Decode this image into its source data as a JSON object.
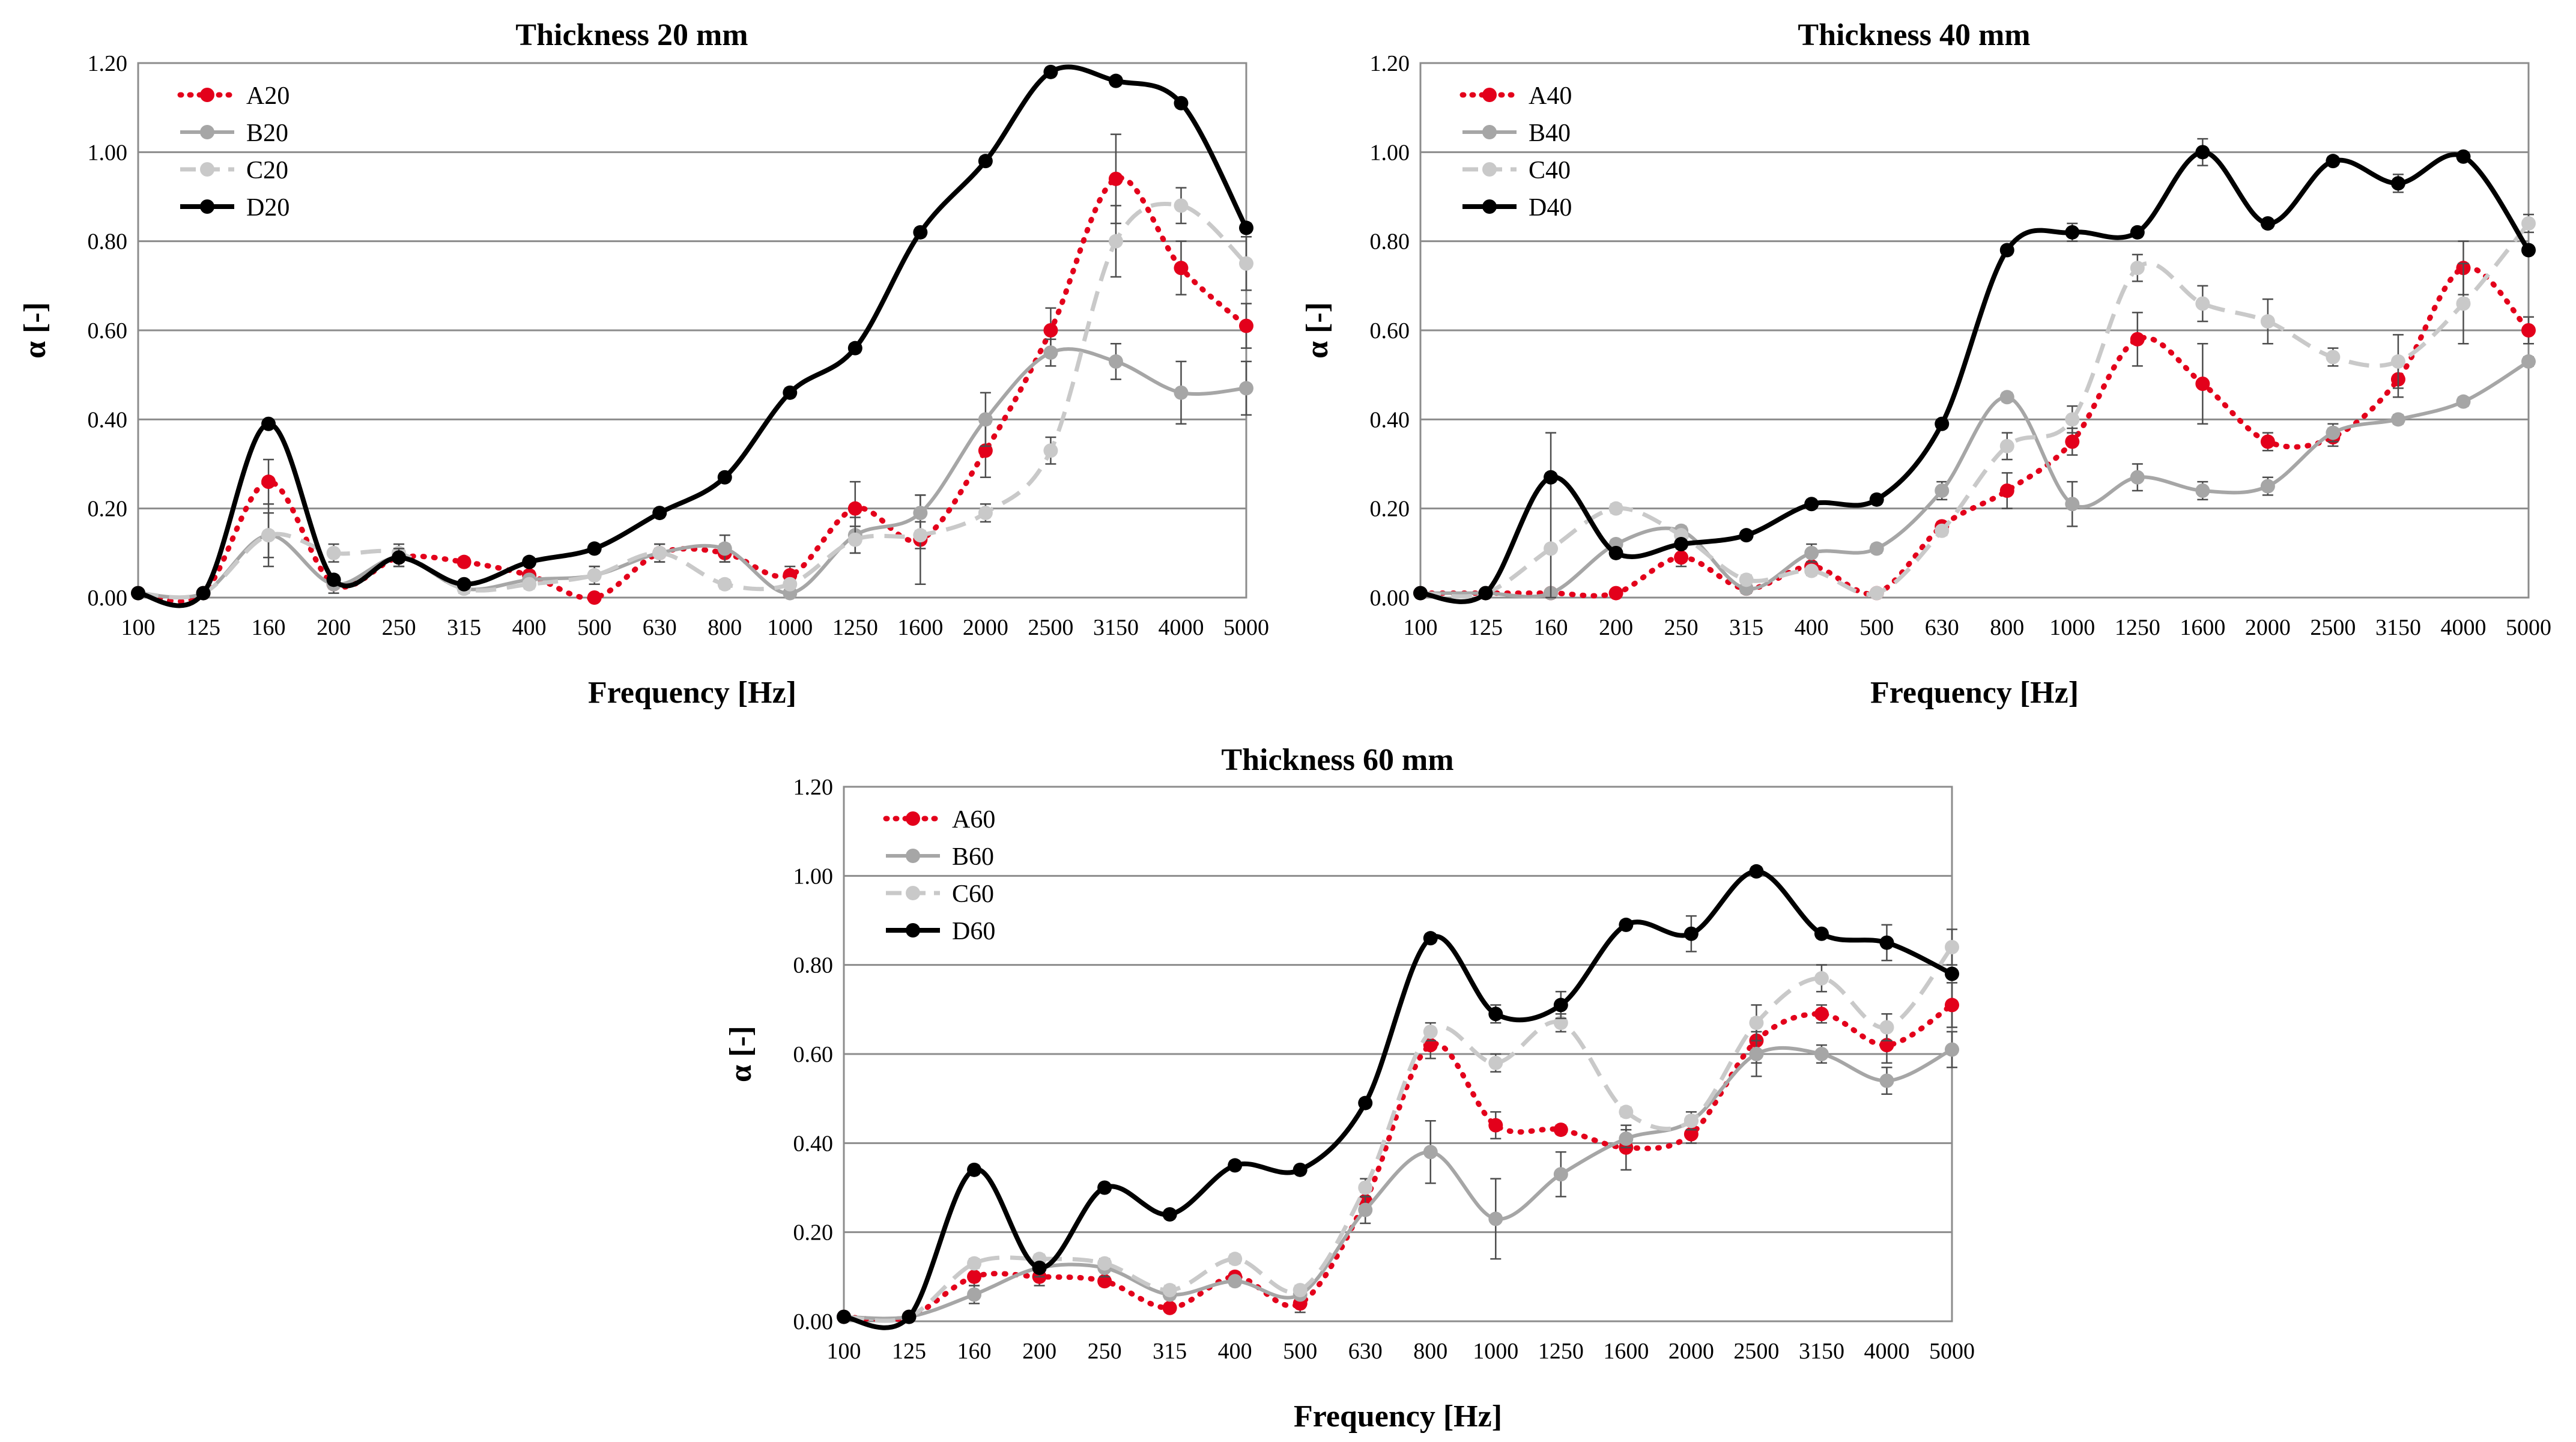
{
  "chart_data": [
    {
      "type": "line",
      "title": "Thickness 20 mm",
      "xlabel": "Frequency [Hz]",
      "ylabel": "α [-]",
      "ylim": [
        0,
        1.2
      ],
      "yticks": [
        "0.00",
        "0.20",
        "0.40",
        "0.60",
        "0.80",
        "1.00",
        "1.20"
      ],
      "grid": true,
      "legend_position": "top-left",
      "categories": [
        "100",
        "125",
        "160",
        "200",
        "250",
        "315",
        "400",
        "500",
        "630",
        "800",
        "1000",
        "1250",
        "1600",
        "2000",
        "2500",
        "3150",
        "4000",
        "5000"
      ],
      "series": [
        {
          "name": "A20",
          "style": "red-dotted",
          "values": [
            0.01,
            0.01,
            0.26,
            0.03,
            0.09,
            0.08,
            0.05,
            0.0,
            0.1,
            0.1,
            0.05,
            0.2,
            0.13,
            0.33,
            0.6,
            0.94,
            0.74,
            0.61
          ],
          "errors": [
            0,
            0,
            0.05,
            0.01,
            0.02,
            0.01,
            0.01,
            0,
            0.01,
            0.02,
            0.02,
            0.06,
            0.1,
            0.06,
            0.05,
            0.1,
            0.06,
            0.05
          ]
        },
        {
          "name": "B20",
          "style": "gray-solid",
          "values": [
            0.01,
            0.01,
            0.14,
            0.03,
            0.09,
            0.02,
            0.04,
            0.05,
            0.1,
            0.11,
            0.01,
            0.14,
            0.19,
            0.4,
            0.55,
            0.53,
            0.46,
            0.47
          ],
          "errors": [
            0,
            0,
            0.07,
            0.02,
            0.02,
            0.01,
            0.01,
            0.02,
            0.02,
            0.03,
            0.01,
            0.04,
            0.04,
            0.06,
            0.03,
            0.04,
            0.07,
            0.06
          ]
        },
        {
          "name": "C20",
          "style": "lightgray-dashed",
          "values": [
            0.01,
            0.01,
            0.14,
            0.1,
            0.1,
            0.02,
            0.03,
            0.05,
            0.1,
            0.03,
            0.03,
            0.13,
            0.14,
            0.19,
            0.33,
            0.8,
            0.88,
            0.75
          ],
          "errors": [
            0,
            0,
            0.05,
            0.02,
            0.02,
            0.01,
            0.01,
            0.02,
            0.02,
            0.01,
            0.01,
            0.03,
            0.03,
            0.02,
            0.03,
            0.08,
            0.04,
            0.06
          ]
        },
        {
          "name": "D20",
          "style": "black-solid",
          "values": [
            0.01,
            0.01,
            0.39,
            0.04,
            0.09,
            0.03,
            0.08,
            0.11,
            0.19,
            0.27,
            0.46,
            0.56,
            0.82,
            0.98,
            1.18,
            1.16,
            1.11,
            0.83
          ],
          "errors": [
            0,
            0,
            0.01,
            0.01,
            0.02,
            0.01,
            0.01,
            0.01,
            0.01,
            0.01,
            0.01,
            0.01,
            0.01,
            0.01,
            0.01,
            0.01,
            0.01,
            0.01
          ]
        }
      ]
    },
    {
      "type": "line",
      "title": "Thickness 40 mm",
      "xlabel": "Frequency [Hz]",
      "ylabel": "α [-]",
      "ylim": [
        0,
        1.2
      ],
      "yticks": [
        "0.00",
        "0.20",
        "0.40",
        "0.60",
        "0.80",
        "1.00",
        "1.20"
      ],
      "grid": true,
      "legend_position": "top-left",
      "categories": [
        "100",
        "125",
        "160",
        "200",
        "250",
        "315",
        "400",
        "500",
        "630",
        "800",
        "1000",
        "1250",
        "1600",
        "2000",
        "2500",
        "3150",
        "4000",
        "5000"
      ],
      "series": [
        {
          "name": "A40",
          "style": "red-dotted",
          "values": [
            0.01,
            0.01,
            0.01,
            0.01,
            0.09,
            0.02,
            0.07,
            0.01,
            0.16,
            0.24,
            0.35,
            0.58,
            0.48,
            0.35,
            0.36,
            0.49,
            0.74,
            0.6
          ],
          "errors": [
            0,
            0,
            0,
            0,
            0.02,
            0.01,
            0.01,
            0,
            0.01,
            0.04,
            0.03,
            0.06,
            0.09,
            0.02,
            0.02,
            0.04,
            0.06,
            0.03
          ]
        },
        {
          "name": "B40",
          "style": "gray-solid",
          "values": [
            0.01,
            0.01,
            0.01,
            0.12,
            0.15,
            0.02,
            0.1,
            0.11,
            0.24,
            0.45,
            0.21,
            0.27,
            0.24,
            0.25,
            0.37,
            0.4,
            0.44,
            0.53
          ],
          "errors": [
            0,
            0,
            0,
            0.01,
            0.01,
            0.01,
            0.02,
            0.01,
            0.02,
            0.01,
            0.05,
            0.03,
            0.02,
            0.02,
            0.02,
            0.01,
            0.01,
            0.01
          ]
        },
        {
          "name": "C40",
          "style": "lightgray-dashed",
          "values": [
            0.01,
            0.01,
            0.11,
            0.2,
            0.14,
            0.04,
            0.06,
            0.01,
            0.15,
            0.34,
            0.4,
            0.74,
            0.66,
            0.62,
            0.54,
            0.53,
            0.66,
            0.84
          ],
          "errors": [
            0,
            0,
            0.26,
            0.01,
            0.01,
            0.01,
            0.01,
            0,
            0.01,
            0.03,
            0.03,
            0.03,
            0.04,
            0.05,
            0.02,
            0.06,
            0.09,
            0.02
          ]
        },
        {
          "name": "D40",
          "style": "black-solid",
          "values": [
            0.01,
            0.01,
            0.27,
            0.1,
            0.12,
            0.14,
            0.21,
            0.22,
            0.39,
            0.78,
            0.82,
            0.82,
            1.0,
            0.84,
            0.98,
            0.93,
            0.99,
            0.78
          ],
          "errors": [
            0,
            0,
            0.01,
            0.01,
            0.01,
            0.01,
            0.01,
            0.01,
            0.01,
            0.01,
            0.02,
            0.01,
            0.03,
            0.01,
            0.01,
            0.02,
            0.01,
            0.01
          ]
        }
      ]
    },
    {
      "type": "line",
      "title": "Thickness 60 mm",
      "xlabel": "Frequency [Hz]",
      "ylabel": "α [-]",
      "ylim": [
        0,
        1.2
      ],
      "yticks": [
        "0.00",
        "0.20",
        "0.40",
        "0.60",
        "0.80",
        "1.00",
        "1.20"
      ],
      "grid": true,
      "legend_position": "top-left",
      "categories": [
        "100",
        "125",
        "160",
        "200",
        "250",
        "315",
        "400",
        "500",
        "630",
        "800",
        "1000",
        "1250",
        "1600",
        "2000",
        "2500",
        "3150",
        "4000",
        "5000"
      ],
      "series": [
        {
          "name": "A60",
          "style": "red-dotted",
          "values": [
            0.01,
            0.01,
            0.1,
            0.1,
            0.09,
            0.03,
            0.1,
            0.04,
            0.27,
            0.62,
            0.44,
            0.43,
            0.39,
            0.42,
            0.63,
            0.69,
            0.62,
            0.71
          ],
          "errors": [
            0,
            0,
            0.02,
            0.02,
            0.01,
            0.01,
            0.01,
            0.02,
            0.02,
            0.03,
            0.03,
            0.01,
            0.05,
            0.02,
            0.05,
            0.02,
            0.04,
            0.05
          ]
        },
        {
          "name": "B60",
          "style": "gray-solid",
          "values": [
            0.01,
            0.01,
            0.06,
            0.12,
            0.12,
            0.06,
            0.09,
            0.06,
            0.25,
            0.38,
            0.23,
            0.33,
            0.41,
            0.45,
            0.6,
            0.6,
            0.54,
            0.61
          ],
          "errors": [
            0,
            0,
            0.02,
            0.02,
            0.02,
            0.01,
            0.01,
            0.01,
            0.03,
            0.07,
            0.09,
            0.05,
            0.02,
            0.02,
            0.05,
            0.02,
            0.03,
            0.04
          ]
        },
        {
          "name": "C60",
          "style": "lightgray-dashed",
          "values": [
            0.01,
            0.01,
            0.13,
            0.14,
            0.13,
            0.07,
            0.14,
            0.07,
            0.3,
            0.65,
            0.58,
            0.67,
            0.47,
            0.45,
            0.67,
            0.77,
            0.66,
            0.84
          ],
          "errors": [
            0,
            0,
            0.01,
            0.01,
            0.01,
            0.01,
            0.01,
            0.01,
            0.02,
            0.02,
            0.02,
            0.02,
            0.01,
            0.01,
            0.04,
            0.03,
            0.03,
            0.04
          ]
        },
        {
          "name": "D60",
          "style": "black-solid",
          "values": [
            0.01,
            0.01,
            0.34,
            0.12,
            0.3,
            0.24,
            0.35,
            0.34,
            0.49,
            0.86,
            0.69,
            0.71,
            0.89,
            0.87,
            1.01,
            0.87,
            0.85,
            0.78
          ],
          "errors": [
            0,
            0,
            0.01,
            0.01,
            0.01,
            0.01,
            0.01,
            0.01,
            0.01,
            0.01,
            0.02,
            0.03,
            0.01,
            0.04,
            0.01,
            0.01,
            0.04,
            0.01
          ]
        }
      ]
    }
  ],
  "colors": {
    "red-dotted": "#e3001b",
    "gray-solid": "#a6a6a6",
    "lightgray-dashed": "#c9c9c9",
    "black-solid": "#000000",
    "gridline": "#8c8c8c",
    "errorbar": "#4d4d4d"
  }
}
